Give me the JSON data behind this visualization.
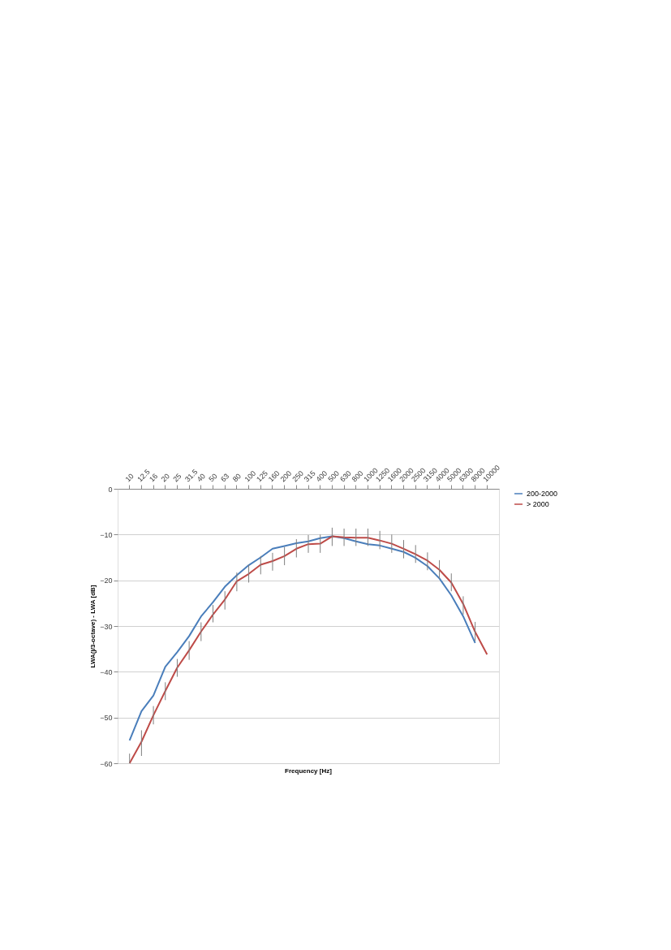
{
  "chart_data": {
    "type": "line",
    "xlabel": "Frequency [Hz]",
    "ylabel": "LWA(j/3-octave) - LWA [dB]",
    "categories": [
      "10",
      "12.5",
      "16",
      "20",
      "25",
      "31.5",
      "40",
      "50",
      "63",
      "80",
      "100",
      "125",
      "160",
      "200",
      "250",
      "315",
      "400",
      "500",
      "630",
      "800",
      "1000",
      "1250",
      "1600",
      "2000",
      "2500",
      "3150",
      "4000",
      "5000",
      "6300",
      "8000",
      "10000"
    ],
    "series": [
      {
        "name": "200-2000",
        "color": "#4a7ebb",
        "values": [
          -55.0,
          -48.6,
          -45.2,
          -38.9,
          -35.7,
          -32.2,
          -27.9,
          -24.8,
          -21.4,
          -18.9,
          -16.7,
          -15.0,
          -13.1,
          -12.5,
          -11.9,
          -11.5,
          -10.8,
          -10.4,
          -10.8,
          -11.5,
          -12.1,
          -12.4,
          -13.1,
          -13.8,
          -15.1,
          -16.9,
          -19.6,
          -23.3,
          -27.9,
          -33.7,
          null
        ]
      },
      {
        "name": "> 2000",
        "color": "#be4b48",
        "values": [
          -60.0,
          -55.3,
          -49.5,
          -44.2,
          -39.1,
          -35.3,
          -31.2,
          -27.5,
          -24.2,
          -20.2,
          -18.6,
          -16.6,
          -15.8,
          -14.7,
          -13.1,
          -12.1,
          -12.0,
          -10.4,
          -10.6,
          -10.7,
          -10.7,
          -11.3,
          -12.0,
          -13.1,
          -14.3,
          -15.7,
          -17.7,
          -20.5,
          -25.2,
          -31.3,
          -36.2
        ],
        "errors": [
          [
            -60,
            -57.9
          ],
          [
            -58.4,
            -52.8
          ],
          [
            -51.5,
            -47.5
          ],
          [
            -46.2,
            -42.3
          ],
          [
            -41.1,
            -37.2
          ],
          [
            -37.4,
            -33.3
          ],
          [
            -33.3,
            -29.2
          ],
          [
            -29.2,
            -25.4
          ],
          [
            -26.4,
            -22.4
          ],
          [
            -22.4,
            -18.3
          ],
          [
            -20.5,
            -16.6
          ],
          [
            -18.7,
            -14.7
          ],
          [
            -17.9,
            -14.0
          ],
          [
            -16.7,
            -12.7
          ],
          [
            -15.0,
            -11.0
          ],
          [
            -14.0,
            -10.1
          ],
          [
            -14.0,
            -10.0
          ],
          [
            -12.5,
            -8.5
          ],
          [
            -12.5,
            -8.7
          ],
          [
            -12.5,
            -8.7
          ],
          [
            -12.5,
            -8.7
          ],
          [
            -13.2,
            -9.2
          ],
          [
            -14.0,
            -10.0
          ],
          [
            -15.2,
            -11.2
          ],
          [
            -16.2,
            -12.3
          ],
          [
            -17.8,
            -13.9
          ],
          [
            -19.6,
            -15.6
          ],
          [
            -22.4,
            -18.5
          ],
          [
            -27.5,
            -23.5
          ],
          [
            -33.3,
            -29.1
          ],
          null
        ]
      }
    ],
    "ylim": [
      -60,
      0
    ],
    "yticks": [
      -60,
      -50,
      -40,
      -30,
      -20,
      -10,
      0
    ],
    "grid": "y",
    "legend": "right"
  }
}
